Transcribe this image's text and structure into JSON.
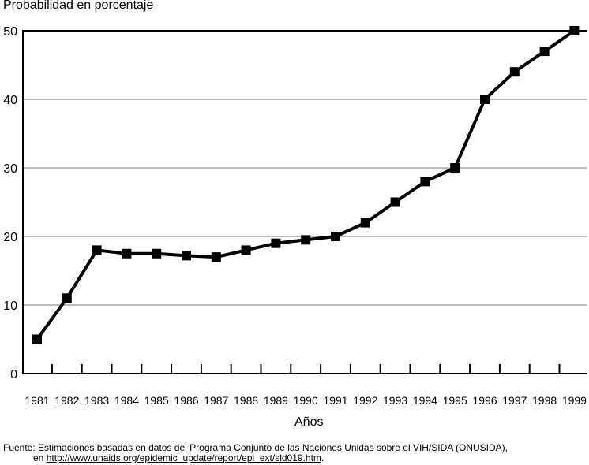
{
  "chart_data": {
    "type": "line",
    "ylabel": "Probabilidad en porcentaje",
    "xlabel": "Años",
    "categories": [
      "1981",
      "1982",
      "1983",
      "1984",
      "1985",
      "1986",
      "1987",
      "1988",
      "1989",
      "1990",
      "1991",
      "1992",
      "1993",
      "1994",
      "1995",
      "1996",
      "1997",
      "1998",
      "1999"
    ],
    "values": [
      5,
      11,
      18,
      17.5,
      17.5,
      17.2,
      17,
      18,
      19,
      19.5,
      20,
      22,
      25,
      28,
      30,
      40,
      44,
      47,
      50
    ],
    "ylim": [
      0,
      50
    ],
    "yticks": [
      0,
      10,
      20,
      30,
      40,
      50
    ],
    "grid": true,
    "line_color": "#000000",
    "marker": "square",
    "legend": "none"
  },
  "source": {
    "line1": "Fuente: Estimaciones basadas en datos del Programa Conjunto de las Naciones Unidas sobre el VIH/SIDA (ONUSIDA),",
    "line2_prefix": "en ",
    "url": "http://www.unaids.org/epidemic_update/report/epi_ext/sld019.htm",
    "line2_suffix": "."
  }
}
